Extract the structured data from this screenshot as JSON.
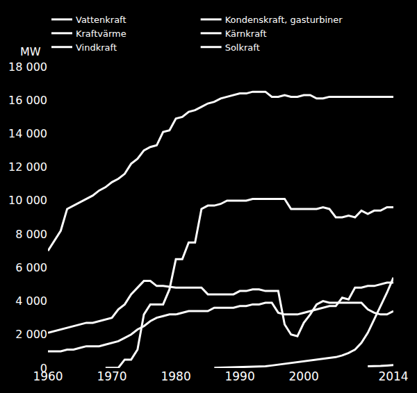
{
  "chart_data": {
    "type": "line",
    "ylabel": "MW",
    "x": [
      1960,
      1961,
      1962,
      1963,
      1964,
      1965,
      1966,
      1967,
      1968,
      1969,
      1970,
      1971,
      1972,
      1973,
      1974,
      1975,
      1976,
      1977,
      1978,
      1979,
      1980,
      1981,
      1982,
      1983,
      1984,
      1985,
      1986,
      1987,
      1988,
      1989,
      1990,
      1991,
      1992,
      1993,
      1994,
      1995,
      1996,
      1997,
      1998,
      1999,
      2000,
      2001,
      2002,
      2003,
      2004,
      2005,
      2006,
      2007,
      2008,
      2009,
      2010,
      2011,
      2012,
      2013,
      2014
    ],
    "series": [
      {
        "name": "Vattenkraft",
        "color": "#ffffff",
        "values": [
          7000,
          7600,
          8200,
          9500,
          9700,
          9900,
          10100,
          10300,
          10600,
          10800,
          11100,
          11300,
          11600,
          12200,
          12500,
          13000,
          13200,
          13300,
          14100,
          14200,
          14900,
          15000,
          15300,
          15400,
          15600,
          15800,
          15900,
          16100,
          16200,
          16300,
          16400,
          16400,
          16500,
          16500,
          16500,
          16200,
          16200,
          16300,
          16200,
          16200,
          16300,
          16300,
          16100,
          16100,
          16200,
          16200,
          16200,
          16200,
          16200,
          16200,
          16200,
          16200,
          16200,
          16200,
          16200
        ]
      },
      {
        "name": "Kondenskraft, gasturbiner",
        "color": "#ffffff",
        "values": [
          2100,
          2200,
          2300,
          2400,
          2500,
          2600,
          2700,
          2700,
          2800,
          2900,
          3000,
          3500,
          3800,
          4400,
          4800,
          5200,
          5200,
          4900,
          4900,
          4850,
          4800,
          4800,
          4800,
          4800,
          4800,
          4400,
          4400,
          4400,
          4400,
          4400,
          4600,
          4600,
          4700,
          4700,
          4600,
          4600,
          4600,
          2600,
          2000,
          1900,
          2700,
          3200,
          3800,
          4000,
          3900,
          3900,
          3900,
          3900,
          3900,
          3900,
          3500,
          3300,
          3200,
          3200,
          3400
        ]
      },
      {
        "name": "Kraftvärme",
        "color": "#ffffff",
        "values": [
          1000,
          1000,
          1000,
          1100,
          1100,
          1200,
          1300,
          1300,
          1300,
          1400,
          1500,
          1600,
          1800,
          2000,
          2300,
          2500,
          2800,
          3000,
          3100,
          3200,
          3200,
          3300,
          3400,
          3400,
          3400,
          3400,
          3600,
          3600,
          3600,
          3600,
          3700,
          3700,
          3800,
          3800,
          3900,
          3900,
          3300,
          3200,
          3200,
          3200,
          3300,
          3400,
          3500,
          3600,
          3700,
          3700,
          4200,
          4100,
          4800,
          4800,
          4900,
          4900,
          5000,
          5100,
          5100
        ]
      },
      {
        "name": "Kärnkraft",
        "color": "#ffffff",
        "values": [
          null,
          null,
          null,
          null,
          null,
          null,
          null,
          null,
          null,
          10,
          10,
          10,
          500,
          500,
          1100,
          3200,
          3800,
          3800,
          3800,
          4700,
          6500,
          6500,
          7500,
          7500,
          9500,
          9700,
          9700,
          9800,
          10000,
          10000,
          10000,
          10000,
          10100,
          10100,
          10100,
          10100,
          10100,
          10100,
          9500,
          9500,
          9500,
          9500,
          9500,
          9600,
          9500,
          9000,
          9000,
          9100,
          9000,
          9400,
          9200,
          9400,
          9400,
          9600,
          9600
        ]
      },
      {
        "name": "Vindkraft",
        "color": "#ffffff",
        "values": [
          null,
          null,
          null,
          null,
          null,
          null,
          null,
          null,
          null,
          null,
          null,
          null,
          null,
          null,
          null,
          null,
          null,
          null,
          null,
          null,
          null,
          null,
          null,
          null,
          null,
          null,
          10,
          20,
          30,
          40,
          50,
          60,
          70,
          80,
          100,
          150,
          200,
          250,
          300,
          350,
          400,
          450,
          500,
          550,
          600,
          650,
          750,
          900,
          1100,
          1500,
          2100,
          2900,
          3700,
          4500,
          5400
        ]
      },
      {
        "name": "Solkraft",
        "color": "#ffffff",
        "values": [
          null,
          null,
          null,
          null,
          null,
          null,
          null,
          null,
          null,
          null,
          null,
          null,
          null,
          null,
          null,
          null,
          null,
          null,
          null,
          null,
          null,
          null,
          null,
          null,
          null,
          null,
          null,
          null,
          null,
          null,
          null,
          null,
          null,
          null,
          null,
          null,
          null,
          null,
          null,
          null,
          null,
          null,
          null,
          null,
          null,
          null,
          null,
          null,
          null,
          null,
          100,
          100,
          120,
          150,
          180
        ]
      }
    ],
    "xlim": [
      1960,
      2014
    ],
    "xticks": [
      1960,
      1970,
      1980,
      1990,
      2000,
      2014
    ],
    "ylim": [
      0,
      18000
    ],
    "yticks": [
      0,
      {
        "value": 2000,
        "label": "2 000"
      },
      {
        "value": 4000,
        "label": "4 000"
      },
      {
        "value": 6000,
        "label": "6 000"
      },
      {
        "value": 8000,
        "label": "8 000"
      },
      {
        "value": 10000,
        "label": "10 000"
      },
      {
        "value": 12000,
        "label": "12 000"
      },
      {
        "value": 14000,
        "label": "14 000"
      },
      {
        "value": 16000,
        "label": "16 000"
      },
      {
        "value": 18000,
        "label": "18 000"
      }
    ],
    "grid": false,
    "legend": "top"
  }
}
